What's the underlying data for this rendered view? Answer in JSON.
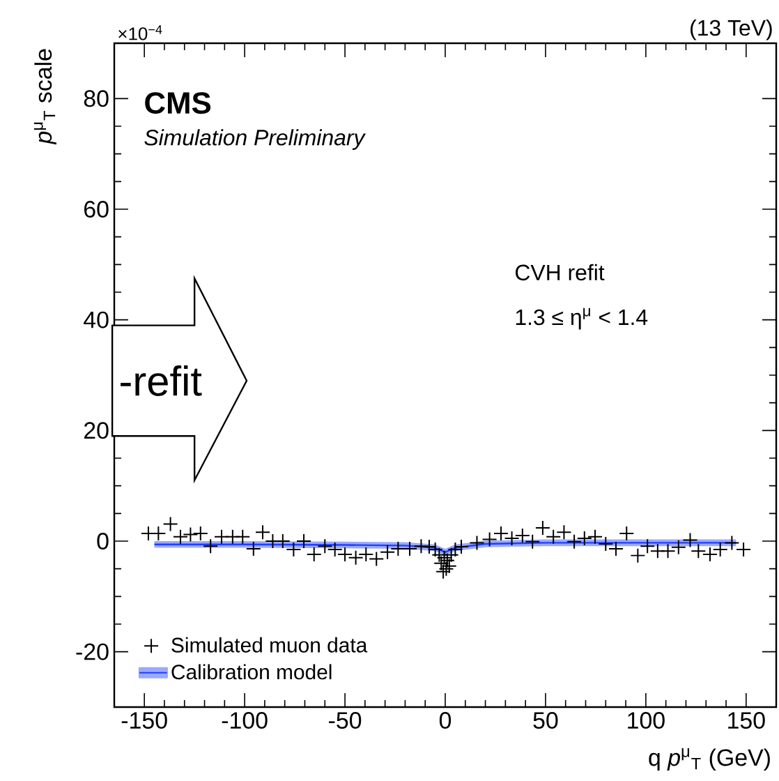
{
  "chart_data": {
    "type": "scatter",
    "xlabel": "q *p*$^{μ}$$_{T}$ (GeV)",
    "ylabel": "*p*$^{μ}$$_{T}$ scale",
    "xlim": [
      -165,
      165
    ],
    "xticks": [
      -150,
      -100,
      -50,
      0,
      50,
      100,
      150
    ],
    "ylim": [
      -30,
      90
    ],
    "yticks": [
      -20,
      0,
      20,
      40,
      60,
      80
    ],
    "legend": "bottom left",
    "annotations": [
      "×10$^{−4}$",
      "(13 TeV)",
      "**CMS**",
      "*Simulation Preliminary*",
      "CVH refit",
      "1.3 ≤ η$^{μ}$ < 1.4",
      "-refit"
    ],
    "series": [
      {
        "name": "Simulated muon data",
        "marker": "cross",
        "color": "#000000",
        "x": [
          -148,
          -143,
          -137,
          -132,
          -127,
          -122,
          -117,
          -111.5,
          -106,
          -101,
          -95.6,
          -91,
          -86,
          -81,
          -75.6,
          -70.5,
          -65.4,
          -60,
          -55,
          -50,
          -44.6,
          -39.5,
          -34.3,
          -28.8,
          -23.5,
          -17.7,
          -12,
          -8,
          -5,
          -3,
          -2,
          -1,
          -0.5,
          0.5,
          1,
          2,
          3,
          5,
          8,
          15.8,
          22.1,
          27.8,
          33.2,
          38.5,
          43.5,
          48.6,
          53.9,
          59.2,
          64.3,
          69.4,
          74.7,
          80,
          85.1,
          90.4,
          96,
          100.8,
          105.9,
          111,
          116.3,
          122.1,
          126.2,
          132,
          137.1,
          142.9,
          148.7
        ],
        "values": [
          1.4,
          1.4,
          3.1,
          0.8,
          1.2,
          1.4,
          -0.9,
          0.8,
          0.8,
          0.8,
          -1.4,
          1.6,
          0,
          0,
          -1.5,
          0,
          -2.4,
          -0.9,
          -1.5,
          -2.4,
          -3,
          -2.4,
          -3.2,
          -2,
          -1.4,
          -1.4,
          -0.9,
          -1,
          -1.5,
          -2.5,
          -4,
          -5.5,
          -3,
          -5,
          -3.5,
          -4.5,
          -2.5,
          -1.5,
          -1,
          -0.3,
          0.3,
          1.4,
          0.5,
          1,
          -0.1,
          2.4,
          0.8,
          1.6,
          -0.1,
          0.5,
          0.8,
          -0.5,
          -1.4,
          1.4,
          -2.6,
          -0.9,
          -1.8,
          -1.8,
          -1.1,
          0.2,
          -1.8,
          -2.4,
          -1.5,
          -0.3,
          -1.5
        ]
      },
      {
        "name": "Calibration model",
        "type": "line",
        "color": "#1f3fff",
        "x": [
          -145,
          -100,
          -50,
          -20,
          -5,
          0,
          5,
          20,
          50,
          100,
          145
        ],
        "values": [
          -0.6,
          -0.6,
          -0.7,
          -0.8,
          -1.2,
          -2,
          -1.2,
          -0.5,
          -0.3,
          -0.3,
          -0.3
        ],
        "lower": [
          -1.2,
          -1.2,
          -1.3,
          -1.4,
          -1.8,
          -2.6,
          -1.8,
          -1.1,
          -0.9,
          -0.9,
          -0.9
        ],
        "upper": [
          0,
          0,
          -0.1,
          -0.2,
          -0.6,
          -1.4,
          -0.6,
          0.1,
          0.3,
          0.3,
          0.3
        ]
      }
    ]
  }
}
